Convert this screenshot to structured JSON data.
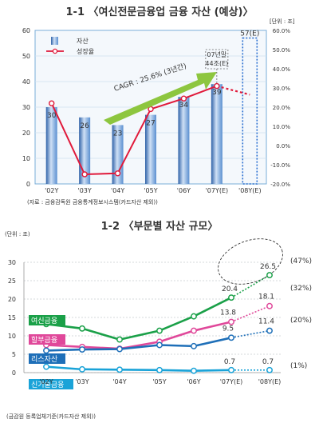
{
  "chart_data": [
    {
      "type": "bar",
      "title": "1-1 〈여신전문금융업 금융 자산 (예상)〉",
      "unit": "[단위 : 조]",
      "source": "(자료 : 금융감독원 금융통계정보시스템(카드자산 제외))",
      "categories": [
        "'02Y",
        "'03Y",
        "'04Y",
        "'05Y",
        "'06Y",
        "'07Y(E)",
        "'08Y(E)"
      ],
      "series": [
        {
          "name": "자산",
          "values": [
            30,
            26,
            23,
            27,
            34,
            39,
            57
          ]
        },
        {
          "name": "성장율",
          "values": [
            22.0,
            -15.0,
            -14.5,
            19.0,
            24.5,
            31.0,
            26.5
          ]
        }
      ],
      "bar_labels": [
        "30",
        "26",
        "23",
        "27",
        "34",
        "39",
        "57(E)"
      ],
      "y_left": {
        "ylim": [
          0,
          60
        ],
        "ticks": [
          "0",
          "10",
          "20",
          "30",
          "40",
          "50",
          "60"
        ]
      },
      "y_right": {
        "ylim": [
          -20,
          60
        ],
        "ticks": [
          "-20.0%",
          "-10.0%",
          "0.0%",
          "10.0%",
          "20.0%",
          "30.0%",
          "40.0%",
          "50.0%",
          "60.0%"
        ]
      },
      "legend_position": "top-left",
      "annotations": {
        "cagr": "CAGR : 25.6% (3년간)",
        "callout_line1": "07년말",
        "callout_line2": "44조(E)"
      },
      "colors": {
        "bar": "#5a8fd0",
        "bar_dark": "#2f62a8",
        "growth_line": "#e0193a",
        "arrow": "#8dc63f",
        "frame": "#4a90c8"
      }
    },
    {
      "type": "line",
      "title": "1-2 〈부문별 자산 규모〉",
      "unit": "(단위 : 조)",
      "source": "(금감원 등록업체기준(카드자산 제외))",
      "categories": [
        "'02Y",
        "'03Y",
        "'04Y",
        "'05Y",
        "'06Y",
        "'07Y(E)",
        "'08Y(E)"
      ],
      "ylim": [
        0,
        30
      ],
      "y_ticks": [
        "0",
        "5",
        "10",
        "15",
        "20",
        "25",
        "30"
      ],
      "series": [
        {
          "name": "여신금융",
          "values": [
            13.2,
            12.0,
            9.0,
            11.4,
            15.3,
            20.4,
            26.5
          ],
          "color": "#1aa048",
          "point_labels": {
            "5": "20.4",
            "6": "26.5"
          },
          "share": "(47%)"
        },
        {
          "name": "할부금융",
          "values": [
            7.5,
            7.0,
            6.5,
            8.4,
            11.4,
            13.8,
            18.1
          ],
          "color": "#e0489a",
          "point_labels": {
            "5": "13.8",
            "6": "18.1"
          },
          "share": "(32%)"
        },
        {
          "name": "리스자산",
          "values": [
            6.0,
            6.3,
            6.4,
            7.5,
            7.2,
            9.5,
            11.4
          ],
          "color": "#1e6fb8",
          "point_labels": {
            "5": "9.5",
            "6": "11.4"
          },
          "share": "(20%)"
        },
        {
          "name": "신기술금융",
          "values": [
            1.6,
            0.9,
            0.8,
            0.7,
            0.5,
            0.7,
            0.7
          ],
          "color": "#1aa3d8",
          "point_labels": {
            "5": "0.7",
            "6": "0.7"
          },
          "share": "(1%)"
        }
      ],
      "forecast_from_index": 5
    }
  ]
}
